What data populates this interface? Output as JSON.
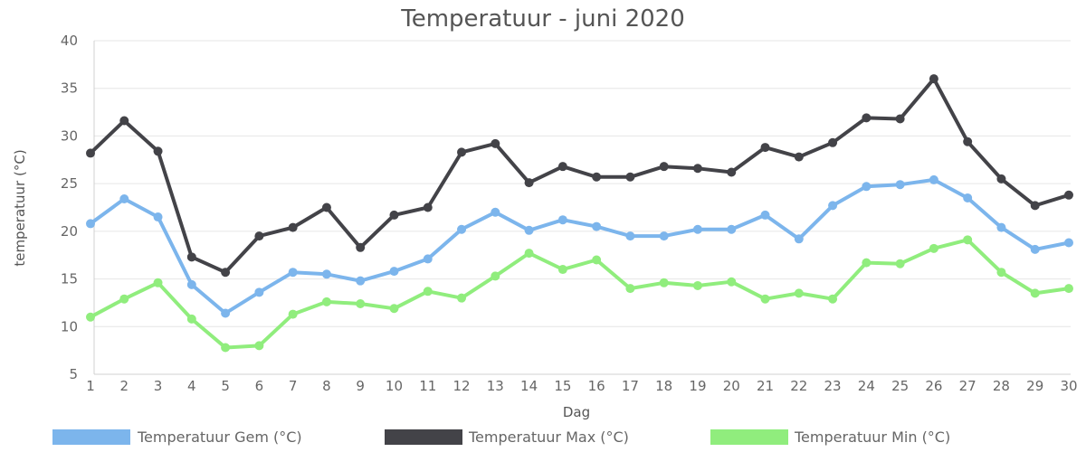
{
  "chart_data": {
    "type": "line",
    "title": "Temperatuur - juni 2020",
    "xlabel": "Dag",
    "ylabel": "temperatuur (°C)",
    "ylim": [
      5,
      40
    ],
    "yticks": [
      5,
      10,
      15,
      20,
      25,
      30,
      35,
      40
    ],
    "grid": true,
    "legend": "bottom",
    "x": [
      1,
      2,
      3,
      4,
      5,
      6,
      7,
      8,
      9,
      10,
      11,
      12,
      13,
      14,
      15,
      16,
      17,
      18,
      19,
      20,
      21,
      22,
      23,
      24,
      25,
      26,
      27,
      28,
      29,
      30
    ],
    "series": [
      {
        "name": "Temperatuur Gem (°C)",
        "color": "#7cb5ec",
        "values": [
          20.8,
          23.4,
          21.5,
          14.4,
          11.4,
          13.6,
          15.7,
          15.5,
          14.8,
          15.8,
          17.1,
          20.2,
          22.0,
          20.1,
          21.2,
          20.5,
          19.5,
          19.5,
          20.2,
          20.2,
          21.7,
          19.2,
          22.7,
          24.7,
          24.9,
          25.4,
          23.5,
          20.4,
          18.1,
          18.8
        ]
      },
      {
        "name": "Temperatuur Max (°C)",
        "color": "#434348",
        "values": [
          28.2,
          31.6,
          28.4,
          17.3,
          15.7,
          19.5,
          20.4,
          22.5,
          18.3,
          21.7,
          22.5,
          28.3,
          29.2,
          25.1,
          26.8,
          25.7,
          25.7,
          26.8,
          26.6,
          26.2,
          28.8,
          27.8,
          29.3,
          31.9,
          31.8,
          36.0,
          29.4,
          25.5,
          22.7,
          23.8
        ]
      },
      {
        "name": "Temperatuur Min (°C)",
        "color": "#90ed7d",
        "values": [
          11.0,
          12.9,
          14.6,
          10.8,
          7.8,
          8.0,
          11.3,
          12.6,
          12.4,
          11.9,
          13.7,
          13.0,
          15.3,
          17.7,
          16.0,
          17.0,
          14.0,
          14.6,
          14.3,
          14.7,
          12.9,
          13.5,
          12.9,
          16.7,
          16.6,
          18.2,
          19.1,
          15.7,
          13.5,
          14.0
        ]
      }
    ]
  }
}
